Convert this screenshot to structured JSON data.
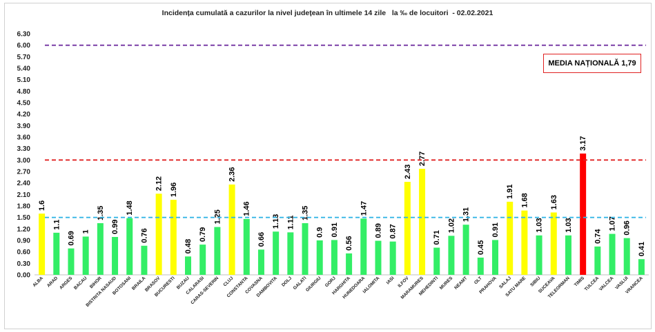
{
  "chart_data": {
    "type": "bar",
    "title": "Incidența cumulată a cazurilor la nivel județean în ultimele 14 zile   la ‰ de locuitori  - 02.02.2021",
    "xlabel": "",
    "ylabel": "",
    "ylim": [
      0,
      6.3
    ],
    "yticks": [
      "0.00",
      "0.30",
      "0.60",
      "0.90",
      "1.20",
      "1.50",
      "1.80",
      "2.10",
      "2.40",
      "2.70",
      "3.00",
      "3.30",
      "3.60",
      "3.90",
      "4.20",
      "4.50",
      "4.80",
      "5.10",
      "5.40",
      "5.70",
      "6.00",
      "6.30"
    ],
    "grid": false,
    "legend_text": "MEDIA NAȚIONALĂ 1,79",
    "legend_placement": "top-right",
    "reference_lines": [
      {
        "value": 6.0,
        "color": "#7030a0"
      },
      {
        "value": 3.0,
        "color": "#e02020"
      },
      {
        "value": 1.5,
        "color": "#33b5e5"
      }
    ],
    "colors": {
      "green": "#33ee66",
      "yellow": "#ffff00",
      "red": "#ff0000"
    },
    "categories": [
      "ALBA",
      "ARAD",
      "ARGES",
      "BACAU",
      "BIHOR",
      "BISTRITA NASAUD",
      "BOTOSANI",
      "BRAILA",
      "BRASOV",
      "BUCURESTI",
      "BUZAU",
      "CALARASI",
      "CARAS-SEVERIN",
      "CLUJ",
      "CONSTANTA",
      "COVASNA",
      "DAMBOVITA",
      "DOLJ",
      "GALATI",
      "GIURGIU",
      "GORJ",
      "HARGHITA",
      "HUNEDOARA",
      "IALOMITA",
      "IASI",
      "ILFOV",
      "MARAMURES",
      "MEHEDINTI",
      "MURES",
      "NEAMT",
      "OLT",
      "PRAHOVA",
      "SALAJ",
      "SATU MARE",
      "SIBIU",
      "SUCEAVA",
      "TELEORMAN",
      "TIMIS",
      "TULCEA",
      "VALCEA",
      "VASLUI",
      "VRANCEA"
    ],
    "values": [
      1.6,
      1.1,
      0.69,
      1,
      1.35,
      0.99,
      1.48,
      0.76,
      2.12,
      1.96,
      0.48,
      0.79,
      1.25,
      2.36,
      1.46,
      0.66,
      1.13,
      1.11,
      1.35,
      0.9,
      0.91,
      0.56,
      1.47,
      0.89,
      0.87,
      2.43,
      2.77,
      0.71,
      1.02,
      1.31,
      0.45,
      0.91,
      1.91,
      1.68,
      1.03,
      1.63,
      1.03,
      3.17,
      0.74,
      1.07,
      0.96,
      0.41
    ],
    "value_labels": [
      "1.6",
      "1.1",
      "0.69",
      "1",
      "1.35",
      "0.99",
      "1.48",
      "0.76",
      "2.12",
      "1.96",
      "0.48",
      "0.79",
      "1.25",
      "2.36",
      "1.46",
      "0.66",
      "1.13",
      "1.11",
      "1.35",
      "0.9",
      "0.91",
      "0.56",
      "1.47",
      "0.89",
      "0.87",
      "2.43",
      "2.77",
      "0.71",
      "1.02",
      "1.31",
      "0.45",
      "0.91",
      "1.91",
      "1.68",
      "1.03",
      "1.63",
      "1.03",
      "3.17",
      "0.74",
      "1.07",
      "0.96",
      "0.41"
    ],
    "bar_colors": [
      "yellow",
      "green",
      "green",
      "green",
      "green",
      "green",
      "green",
      "green",
      "yellow",
      "yellow",
      "green",
      "green",
      "green",
      "yellow",
      "green",
      "green",
      "green",
      "green",
      "green",
      "green",
      "green",
      "green",
      "green",
      "green",
      "green",
      "yellow",
      "yellow",
      "green",
      "green",
      "green",
      "green",
      "green",
      "yellow",
      "yellow",
      "green",
      "yellow",
      "green",
      "red",
      "green",
      "green",
      "green",
      "green"
    ]
  }
}
